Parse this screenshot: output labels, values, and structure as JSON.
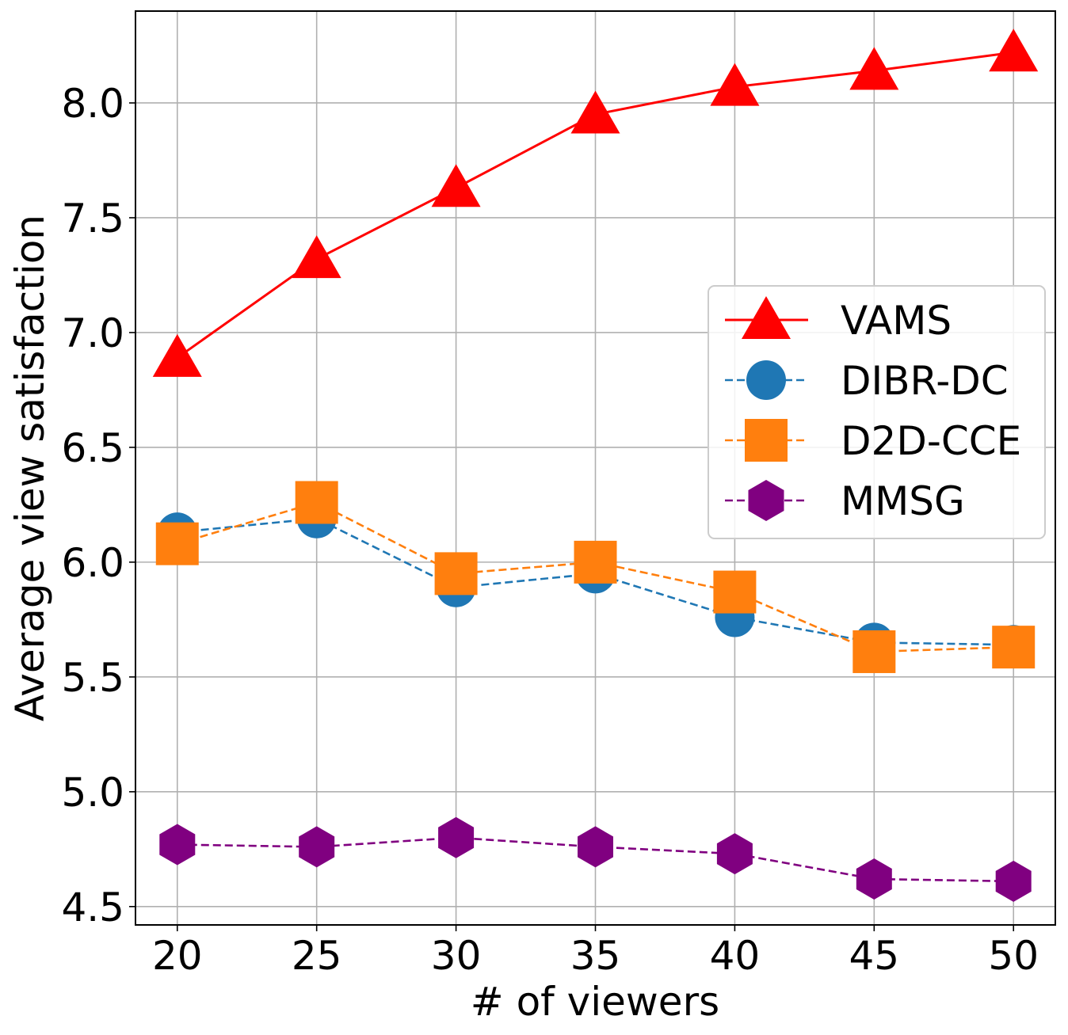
{
  "chart_data": {
    "type": "line",
    "xlabel": "# of viewers",
    "ylabel": "Average view satisfaction",
    "x": [
      20,
      25,
      30,
      35,
      40,
      45,
      50
    ],
    "xlim": [
      18.5,
      51.5
    ],
    "ylim": [
      4.42,
      8.4
    ],
    "xticks": [
      "20",
      "25",
      "30",
      "35",
      "40",
      "45",
      "50"
    ],
    "yticks": [
      "4.5",
      "5.0",
      "5.5",
      "6.0",
      "6.5",
      "7.0",
      "7.5",
      "8.0"
    ],
    "grid": true,
    "legend_position": "center-right",
    "series": [
      {
        "name": "VAMS",
        "color": "#ff0000",
        "line": "solid",
        "marker": "triangle",
        "values": [
          6.89,
          7.32,
          7.63,
          7.95,
          8.07,
          8.14,
          8.22
        ]
      },
      {
        "name": "DIBR-DC",
        "color": "#1f77b4",
        "line": "dashed",
        "marker": "circle",
        "values": [
          6.13,
          6.19,
          5.89,
          5.95,
          5.76,
          5.65,
          5.64
        ]
      },
      {
        "name": "D2D-CCE",
        "color": "#ff7f0e",
        "line": "dashed",
        "marker": "square",
        "values": [
          6.08,
          6.26,
          5.95,
          6.0,
          5.87,
          5.61,
          5.63
        ]
      },
      {
        "name": "MMSG",
        "color": "#800080",
        "line": "dashed",
        "marker": "hexagon",
        "values": [
          4.77,
          4.76,
          4.8,
          4.76,
          4.73,
          4.62,
          4.61
        ]
      }
    ]
  }
}
